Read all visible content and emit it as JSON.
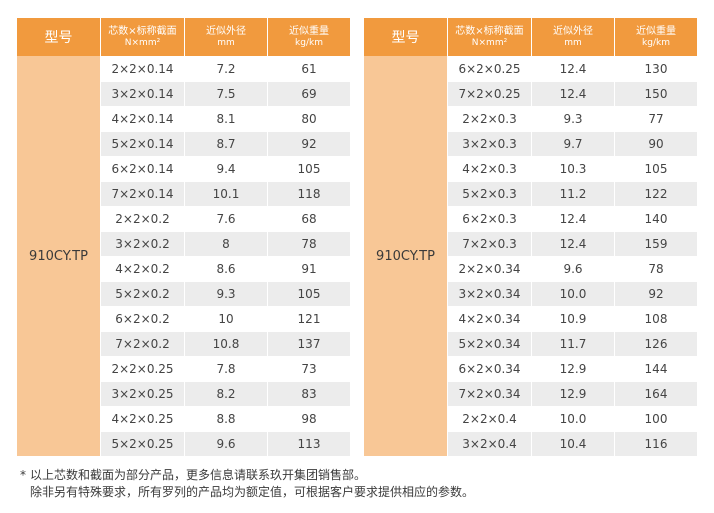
{
  "headers": {
    "model": "型号",
    "section_line1": "芯数×标称截面",
    "section_line2": "N×mm²",
    "diameter_line1": "近似外径",
    "diameter_line2": "mm",
    "weight_line1": "近似重量",
    "weight_line2": "kg/km"
  },
  "colors": {
    "header_bg": "#f19a3e",
    "model_bg": "#f8c796",
    "row_alt": "#ececec"
  },
  "tables": [
    {
      "model": "910CY.TP",
      "rows": [
        [
          "2×2×0.14",
          "7.2",
          "61"
        ],
        [
          "3×2×0.14",
          "7.5",
          "69"
        ],
        [
          "4×2×0.14",
          "8.1",
          "80"
        ],
        [
          "5×2×0.14",
          "8.7",
          "92"
        ],
        [
          "6×2×0.14",
          "9.4",
          "105"
        ],
        [
          "7×2×0.14",
          "10.1",
          "118"
        ],
        [
          "2×2×0.2",
          "7.6",
          "68"
        ],
        [
          "3×2×0.2",
          "8",
          "78"
        ],
        [
          "4×2×0.2",
          "8.6",
          "91"
        ],
        [
          "5×2×0.2",
          "9.3",
          "105"
        ],
        [
          "6×2×0.2",
          "10",
          "121"
        ],
        [
          "7×2×0.2",
          "10.8",
          "137"
        ],
        [
          "2×2×0.25",
          "7.8",
          "73"
        ],
        [
          "3×2×0.25",
          "8.2",
          "83"
        ],
        [
          "4×2×0.25",
          "8.8",
          "98"
        ],
        [
          "5×2×0.25",
          "9.6",
          "113"
        ]
      ]
    },
    {
      "model": "910CY.TP",
      "rows": [
        [
          "6×2×0.25",
          "12.4",
          "130"
        ],
        [
          "7×2×0.25",
          "12.4",
          "150"
        ],
        [
          "2×2×0.3",
          "9.3",
          "77"
        ],
        [
          "3×2×0.3",
          "9.7",
          "90"
        ],
        [
          "4×2×0.3",
          "10.3",
          "105"
        ],
        [
          "5×2×0.3",
          "11.2",
          "122"
        ],
        [
          "6×2×0.3",
          "12.4",
          "140"
        ],
        [
          "7×2×0.3",
          "12.4",
          "159"
        ],
        [
          "2×2×0.34",
          "9.6",
          "78"
        ],
        [
          "3×2×0.34",
          "10.0",
          "92"
        ],
        [
          "4×2×0.34",
          "10.9",
          "108"
        ],
        [
          "5×2×0.34",
          "11.7",
          "126"
        ],
        [
          "6×2×0.34",
          "12.9",
          "144"
        ],
        [
          "7×2×0.34",
          "12.9",
          "164"
        ],
        [
          "2×2×0.4",
          "10.0",
          "100"
        ],
        [
          "3×2×0.4",
          "10.4",
          "116"
        ]
      ]
    }
  ],
  "notes": {
    "star": "*",
    "line1": "以上芯数和截面为部分产品，更多信息请联系玖开集团销售部。",
    "line2": "除非另有特殊要求，所有罗列的产品均为额定值，可根据客户要求提供相应的参数。"
  }
}
